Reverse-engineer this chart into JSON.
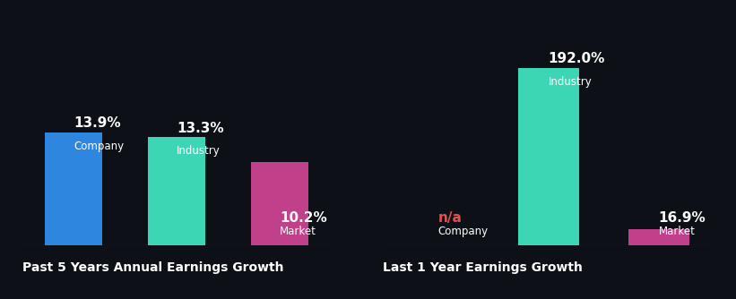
{
  "background_color": "#0d1117",
  "text_color": "#ffffff",
  "na_color": "#e05252",
  "title_color": "#ffffff",
  "label_fontsize": 8.5,
  "value_fontsize": 11,
  "title_fontsize": 10,
  "left_chart": {
    "title": "Past 5 Years Annual Earnings Growth",
    "bars": [
      {
        "label": "Company",
        "value": 13.9,
        "color": "#2e86de",
        "display": "13.9%",
        "na": false
      },
      {
        "label": "Industry",
        "value": 13.3,
        "color": "#3dd6b5",
        "display": "13.3%",
        "na": false
      },
      {
        "label": "Market",
        "value": 10.2,
        "color": "#c0408a",
        "display": "10.2%",
        "na": false
      }
    ],
    "ylim": [
      0,
      25
    ],
    "bar_width": 0.55
  },
  "right_chart": {
    "title": "Last 1 Year Earnings Growth",
    "bars": [
      {
        "label": "Company",
        "value": 0,
        "color": "#2e86de",
        "display": "n/a",
        "na": true
      },
      {
        "label": "Industry",
        "value": 192.0,
        "color": "#3dd6b5",
        "display": "192.0%",
        "na": false
      },
      {
        "label": "Market",
        "value": 16.9,
        "color": "#c0408a",
        "display": "16.9%",
        "na": false
      }
    ],
    "ylim": [
      0,
      220
    ],
    "bar_width": 0.55
  }
}
